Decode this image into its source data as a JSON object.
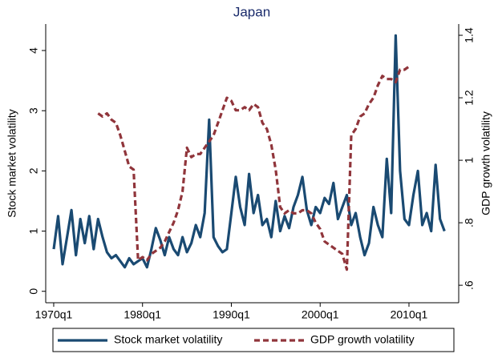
{
  "chart_data": {
    "type": "line",
    "title": "Japan",
    "y_label": "Stock market volatility",
    "y2_label": "GDP growth volatility",
    "x": [
      1970,
      1970.5,
      1971,
      1971.5,
      1972,
      1972.5,
      1973,
      1973.5,
      1974,
      1974.5,
      1975,
      1975.5,
      1976,
      1976.5,
      1977,
      1977.5,
      1978,
      1978.5,
      1979,
      1979.5,
      1980,
      1980.5,
      1981,
      1981.5,
      1982,
      1982.5,
      1983,
      1983.5,
      1984,
      1984.5,
      1985,
      1985.5,
      1986,
      1986.5,
      1987,
      1987.5,
      1988,
      1988.5,
      1989,
      1989.5,
      1990,
      1990.5,
      1991,
      1991.5,
      1992,
      1992.5,
      1993,
      1993.5,
      1994,
      1994.5,
      1995,
      1995.5,
      1996,
      1996.5,
      1997,
      1997.5,
      1998,
      1998.5,
      1999,
      1999.5,
      2000,
      2000.5,
      2001,
      2001.5,
      2002,
      2002.5,
      2003,
      2003.5,
      2004,
      2004.5,
      2005,
      2005.5,
      2006,
      2006.5,
      2007,
      2007.5,
      2008,
      2008.5,
      2009,
      2009.5,
      2010,
      2010.5,
      2011,
      2011.5,
      2012,
      2012.5,
      2013,
      2013.5,
      2014
    ],
    "series": [
      {
        "name": "Stock market volatility",
        "color": "#1a4a72",
        "dash": false,
        "values": [
          0.7,
          1.25,
          0.45,
          0.9,
          1.35,
          0.6,
          1.2,
          0.8,
          1.25,
          0.7,
          1.2,
          0.9,
          0.65,
          0.55,
          0.6,
          0.5,
          0.4,
          0.55,
          0.45,
          0.5,
          0.55,
          0.4,
          0.7,
          1.05,
          0.85,
          0.6,
          0.9,
          0.7,
          0.6,
          0.9,
          0.65,
          0.8,
          1.1,
          0.9,
          1.3,
          2.85,
          0.9,
          0.75,
          0.65,
          0.7,
          1.3,
          1.9,
          1.4,
          1.1,
          1.95,
          1.3,
          1.6,
          1.1,
          1.2,
          0.9,
          1.5,
          1.0,
          1.25,
          1.05,
          1.4,
          1.6,
          1.9,
          1.35,
          1.1,
          1.4,
          1.3,
          1.55,
          1.45,
          1.8,
          1.2,
          1.4,
          1.6,
          1.1,
          1.3,
          0.9,
          0.6,
          0.8,
          1.4,
          1.1,
          0.9,
          2.2,
          1.3,
          4.25,
          2.0,
          1.2,
          1.1,
          1.6,
          2.0,
          1.1,
          1.3,
          1.0,
          2.1,
          1.2,
          1.0
        ]
      },
      {
        "name": "GDP growth volatility",
        "color": "#90353b",
        "dash": true,
        "axis": "y2",
        "values": [
          null,
          null,
          null,
          null,
          null,
          null,
          null,
          null,
          null,
          null,
          1.15,
          1.14,
          1.15,
          1.13,
          1.12,
          1.08,
          1.03,
          0.98,
          0.97,
          0.68,
          0.69,
          0.68,
          0.7,
          0.71,
          0.72,
          0.74,
          0.77,
          0.8,
          0.84,
          0.9,
          1.04,
          1.01,
          1.02,
          1.02,
          1.04,
          1.06,
          1.08,
          1.12,
          1.16,
          1.2,
          1.19,
          1.16,
          1.16,
          1.17,
          1.16,
          1.18,
          1.17,
          1.12,
          1.1,
          1.05,
          0.97,
          0.85,
          0.83,
          0.84,
          0.83,
          0.83,
          0.84,
          0.84,
          0.83,
          0.8,
          0.78,
          0.74,
          0.73,
          0.72,
          0.71,
          0.7,
          0.65,
          1.08,
          1.1,
          1.14,
          1.15,
          1.18,
          1.2,
          1.24,
          1.27,
          1.26,
          1.26,
          1.25,
          1.29,
          1.29,
          1.3,
          null,
          null,
          null,
          null,
          null,
          null,
          null,
          null
        ]
      }
    ],
    "xlim": [
      1969.1,
      2015.6
    ],
    "xticks": [
      {
        "value": 1970,
        "label": "1970q1"
      },
      {
        "value": 1980,
        "label": "1980q1"
      },
      {
        "value": 1990,
        "label": "1990q1"
      },
      {
        "value": 2000,
        "label": "2000q1"
      },
      {
        "value": 2010,
        "label": "2010q1"
      }
    ],
    "ylim": [
      -0.19,
      4.44
    ],
    "yticks": [
      0,
      1,
      2,
      3,
      4
    ],
    "y2lim": [
      0.544,
      1.436
    ],
    "y2ticks": [
      {
        "value": 0.6,
        "label": ".6"
      },
      {
        "value": 0.8,
        "label": ".8"
      },
      1,
      1.2,
      1.4
    ],
    "grid": false,
    "legend": "bottom"
  }
}
